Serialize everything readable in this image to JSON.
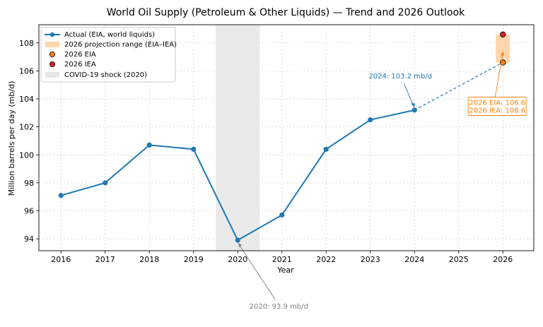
{
  "chart_data": {
    "type": "line",
    "title": "World Oil Supply (Petroleum & Other Liquids) — Trend and 2026 Outlook",
    "xlabel": "Year",
    "ylabel": "Million barrels per day (mb/d)",
    "xlim": [
      2015.5,
      2026.7
    ],
    "ylim": [
      93.15,
      109.3
    ],
    "xticks": [
      2016,
      2017,
      2018,
      2019,
      2020,
      2021,
      2022,
      2023,
      2024,
      2025,
      2026
    ],
    "yticks": [
      94,
      96,
      98,
      100,
      102,
      104,
      106,
      108
    ],
    "grid": true,
    "legend_position": "top-left",
    "series": [
      {
        "name": "Actual (EIA, world liquids)",
        "color": "#1f77b4",
        "x": [
          2016,
          2017,
          2018,
          2019,
          2020,
          2021,
          2022,
          2023,
          2024
        ],
        "y": [
          97.1,
          98.0,
          100.7,
          100.4,
          93.9,
          95.7,
          100.4,
          102.5,
          103.2
        ]
      }
    ],
    "projection": {
      "range_label": "2026 projection range (EIA–IEA)",
      "eia_label": "2026 EIA",
      "iea_label": "2026 IEA",
      "year": 2026,
      "eia": 106.6,
      "iea": 108.6,
      "eia_color": "#ff7f0e",
      "iea_color": "#d62728",
      "range_color": "#ffcc99"
    },
    "shock": {
      "label": "COVID-19 shock (2020)",
      "start": 2019.5,
      "end": 2020.5,
      "color": "#e6e6e6"
    },
    "annotations": {
      "a2024": {
        "text": "2024: 103.2 mb/d",
        "x": 2024,
        "y": 103.2,
        "color": "#1f77b4"
      },
      "a2020": {
        "text": "2020: 93.9 mb/d",
        "x": 2020,
        "y": 93.9,
        "color": "#808080"
      },
      "a2026_eia": "2026 EIA: 106.6",
      "a2026_iea": "2026 IEA: 108.6"
    }
  }
}
